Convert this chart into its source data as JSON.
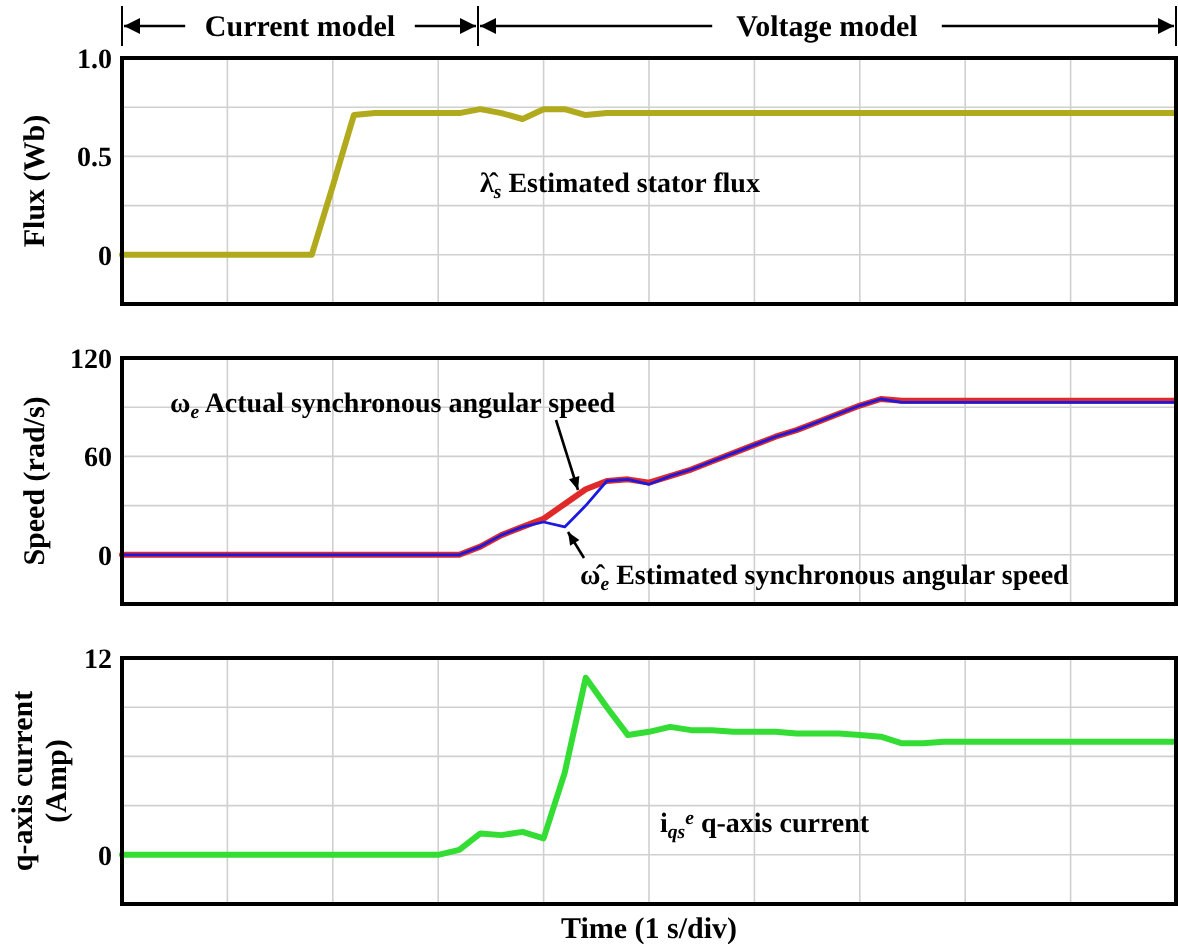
{
  "chart_data": [
    {
      "type": "line",
      "ylabel": "Flux (Wb)",
      "categories": [
        null,
        null,
        null,
        null,
        null,
        null,
        null,
        null,
        null,
        null,
        null,
        null,
        null,
        null,
        null,
        null,
        null,
        null,
        null,
        null,
        null,
        null,
        null,
        null,
        null,
        null,
        null,
        null,
        null,
        null,
        null,
        null,
        null,
        null,
        null,
        null,
        null,
        null,
        null,
        null,
        null,
        null,
        null,
        null,
        null,
        null,
        null,
        null,
        null,
        null,
        null
      ],
      "ylim": [
        -0.25,
        1.0
      ],
      "yticks": [
        0,
        {
          "value": 0.25,
          "label": null
        },
        0.5,
        {
          "value": 0.75,
          "label": null
        },
        {
          "value": 1.0,
          "label": "1.0"
        }
      ],
      "tick_labels": "y",
      "grid": true,
      "line_style": "solid",
      "annotations": [
        "Current model",
        "Voltage model"
      ],
      "series": [
        {
          "name": "λ̂$_{s}$  Estimated stator flux",
          "color": "#b0aa1c",
          "values": [
            0,
            0,
            0,
            0,
            0,
            0,
            0,
            0,
            0,
            0,
            0.35,
            0.71,
            0.72,
            0.72,
            0.72,
            0.72,
            0.72,
            0.74,
            0.72,
            0.69,
            0.74,
            0.74,
            0.71,
            0.72,
            0.72,
            0.72,
            0.72,
            0.72,
            0.72,
            0.72,
            0.72,
            0.72,
            0.72,
            0.72,
            0.72,
            0.72,
            0.72,
            0.72,
            0.72,
            0.72,
            0.72,
            0.72,
            0.72,
            0.72,
            0.72,
            0.72,
            0.72,
            0.72,
            0.72,
            0.72,
            0.72
          ]
        }
      ]
    },
    {
      "type": "line",
      "ylabel": "Speed (rad/s)",
      "categories": [
        null,
        null,
        null,
        null,
        null,
        null,
        null,
        null,
        null,
        null,
        null,
        null,
        null,
        null,
        null,
        null,
        null,
        null,
        null,
        null,
        null,
        null,
        null,
        null,
        null,
        null,
        null,
        null,
        null,
        null,
        null,
        null,
        null,
        null,
        null,
        null,
        null,
        null,
        null,
        null,
        null,
        null,
        null,
        null,
        null,
        null,
        null,
        null,
        null,
        null,
        null
      ],
      "ylim": [
        -30,
        120
      ],
      "yticks": [
        {
          "value": -30,
          "label": null
        },
        0,
        {
          "value": 30,
          "label": null
        },
        60,
        {
          "value": 90,
          "label": null
        },
        120
      ],
      "tick_labels": "y",
      "grid": true,
      "line_style": "solid",
      "series": [
        {
          "name": "ω$_{e}$ Actual synchronous angular speed",
          "color": "#e02a2a",
          "values": [
            0,
            0,
            0,
            0,
            0,
            0,
            0,
            0,
            0,
            0,
            0,
            0,
            0,
            0,
            0,
            0,
            0,
            5,
            12,
            17,
            22,
            31,
            40,
            45,
            46,
            44,
            48,
            52,
            57,
            62,
            67,
            72,
            76,
            81,
            86,
            91,
            95,
            94,
            94,
            94,
            94,
            94,
            94,
            94,
            94,
            94,
            94,
            94,
            94,
            94,
            94
          ]
        },
        {
          "name": "ω̂$_{e}$ Estimated synchronous angular speed",
          "color": "#1a1ae0",
          "values": [
            0,
            0,
            0,
            0,
            0,
            0,
            0,
            0,
            0,
            0,
            0,
            0,
            0,
            0,
            0,
            0,
            0,
            5,
            12,
            17,
            20,
            17,
            30,
            45,
            46,
            43,
            48,
            52,
            57,
            62,
            67,
            72,
            76,
            81,
            86,
            91,
            95,
            93,
            93,
            93,
            93,
            93,
            93,
            93,
            93,
            93,
            93,
            93,
            93,
            93,
            93
          ]
        }
      ]
    },
    {
      "type": "line",
      "ylabel": "q-axis current (Amp)",
      "xlabel": "Time (1 s/div)",
      "categories": [
        null,
        null,
        null,
        null,
        null,
        null,
        null,
        null,
        null,
        null,
        null,
        null,
        null,
        null,
        null,
        null,
        null,
        null,
        null,
        null,
        null,
        null,
        null,
        null,
        null,
        null,
        null,
        null,
        null,
        null,
        null,
        null,
        null,
        null,
        null,
        null,
        null,
        null,
        null,
        null,
        null,
        null,
        null,
        null,
        null,
        null,
        null,
        null,
        null,
        null,
        null
      ],
      "ylim": [
        -3,
        12
      ],
      "yticks": [
        {
          "value": -3,
          "label": null
        },
        0,
        {
          "value": 3,
          "label": null
        },
        {
          "value": 6,
          "label": null
        },
        {
          "value": 9,
          "label": null
        },
        12
      ],
      "tick_labels": "y",
      "grid": true,
      "line_style": "solid",
      "series": [
        {
          "name": "i$_{qs}$$^{e}$  q-axis current",
          "color": "#33dd33",
          "values": [
            0,
            0,
            0,
            0,
            0,
            0,
            0,
            0,
            0,
            0,
            0,
            0,
            0,
            0,
            0,
            0,
            0.3,
            1.3,
            1.2,
            1.4,
            1.0,
            5,
            10.8,
            9,
            7.3,
            7.5,
            7.8,
            7.6,
            7.6,
            7.5,
            7.5,
            7.5,
            7.4,
            7.4,
            7.4,
            7.3,
            7.2,
            6.8,
            6.8,
            6.9,
            6.9,
            6.9,
            6.9,
            6.9,
            6.9,
            6.9,
            6.9,
            6.9,
            6.9,
            6.9,
            6.9
          ]
        }
      ]
    }
  ]
}
